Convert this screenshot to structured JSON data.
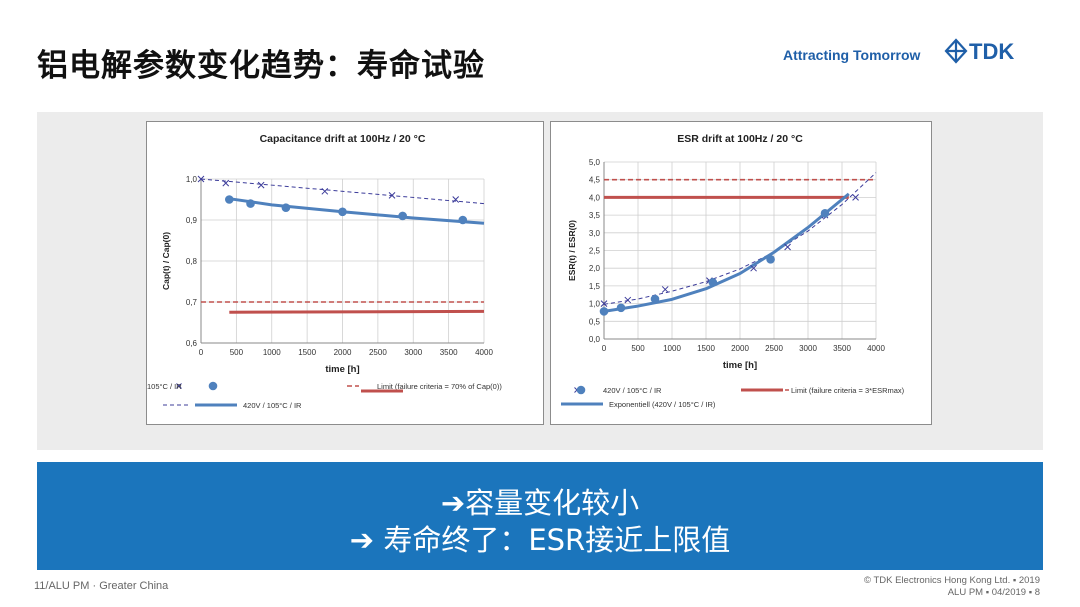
{
  "slide": {
    "title": "铝电解参数变化趋势：寿命试验",
    "tagline": "Attracting Tomorrow",
    "logo_text": "TDK",
    "banner": [
      "➔容量变化较小",
      "➔  寿命终了：ESR接近上限值"
    ],
    "footer_left": "11/ALU PM  ·  Greater China",
    "footer_right": [
      "© TDK Electronics Hong Kong Ltd.  ▪ 2019",
      "ALU PM  ▪ 04/2019 ▪ 8"
    ],
    "colors": {
      "brand_blue": "#1f5fa8",
      "band_blue": "#1b75bc",
      "series_blue": "#4f81bd",
      "limit_red": "#c0504d"
    }
  },
  "chart_data": [
    {
      "type": "scatter",
      "title": "Capacitance drift at 100Hz / 20 °C",
      "xlabel": "time [h]",
      "ylabel": "Cap(t) / Cap(0)",
      "xlim": [
        0,
        4000
      ],
      "ylim": [
        0.6,
        1.0
      ],
      "x_ticks": [
        "0",
        "500",
        "1000",
        "1500",
        "2000",
        "2500",
        "3000",
        "3500",
        "4000"
      ],
      "y_ticks": [
        "0,6",
        "0,7",
        "0,8",
        "0,9",
        "1,0"
      ],
      "grid": true,
      "legend_position": "bottom",
      "series": [
        {
          "name": "105°C / IR",
          "kind": "x-marker",
          "x": [
            0,
            350,
            850,
            1750,
            2700,
            3600
          ],
          "y": [
            1.0,
            0.99,
            0.985,
            0.97,
            0.96,
            0.95
          ]
        },
        {
          "name": "",
          "kind": "dashed-trend",
          "x": [
            0,
            4000
          ],
          "y": [
            1.0,
            0.94
          ]
        },
        {
          "name": "",
          "kind": "circle-marker",
          "x": [
            400,
            700,
            1200,
            2000,
            2850,
            3700
          ],
          "y": [
            0.95,
            0.94,
            0.93,
            0.92,
            0.91,
            0.9
          ]
        },
        {
          "name": "420V / 105°C / IR",
          "kind": "solid-trend",
          "x": [
            400,
            1000,
            2000,
            3000,
            4000
          ],
          "y": [
            0.952,
            0.937,
            0.92,
            0.905,
            0.892
          ]
        },
        {
          "name": "Limit (failure criteria = 70% of Cap(0))",
          "kind": "dashed-limit",
          "x": [
            0,
            4000
          ],
          "y": [
            0.7,
            0.7
          ]
        },
        {
          "name": "",
          "kind": "solid-limit",
          "x": [
            400,
            4000
          ],
          "y": [
            0.675,
            0.677
          ]
        }
      ]
    },
    {
      "type": "scatter",
      "title": "ESR drift at 100Hz / 20 °C",
      "xlabel": "time [h]",
      "ylabel": "ESR(t) / ESR(0)",
      "xlim": [
        0,
        4000
      ],
      "ylim": [
        0.0,
        5.0
      ],
      "x_ticks": [
        "0",
        "500",
        "1000",
        "1500",
        "2000",
        "2500",
        "3000",
        "3500",
        "4000"
      ],
      "y_ticks": [
        "0,0",
        "0,5",
        "1,0",
        "1,5",
        "2,0",
        "2,5",
        "3,0",
        "3,5",
        "4,0",
        "4,5",
        "5,0"
      ],
      "grid": true,
      "legend_position": "bottom",
      "series": [
        {
          "name": "",
          "kind": "x-marker",
          "x": [
            0,
            350,
            900,
            1550,
            2200,
            2700,
            3250,
            3700
          ],
          "y": [
            1.0,
            1.1,
            1.4,
            1.65,
            2.0,
            2.6,
            3.5,
            4.0
          ]
        },
        {
          "name": "",
          "kind": "dashed-trend",
          "x": [
            0,
            500,
            1000,
            1500,
            2000,
            2500,
            3000,
            3500,
            4000
          ],
          "y": [
            0.98,
            1.13,
            1.35,
            1.62,
            1.98,
            2.45,
            3.05,
            3.8,
            4.7
          ]
        },
        {
          "name": "420V / 105°C / IR",
          "kind": "circle-marker",
          "x": [
            0,
            250,
            750,
            1600,
            2450,
            3250
          ],
          "y": [
            0.78,
            0.88,
            1.13,
            1.6,
            2.25,
            3.55
          ]
        },
        {
          "name": "Exponentiell (420V / 105°C / IR)",
          "kind": "solid-trend",
          "x": [
            0,
            500,
            1000,
            1500,
            2000,
            2500,
            3000,
            3600
          ],
          "y": [
            0.78,
            0.93,
            1.12,
            1.42,
            1.85,
            2.45,
            3.15,
            4.1
          ]
        },
        {
          "name": "",
          "kind": "dashed-limit",
          "x": [
            0,
            4000
          ],
          "y": [
            4.5,
            4.5
          ]
        },
        {
          "name": "Limit (failure criteria = 3*ESRmax)",
          "kind": "solid-limit",
          "x": [
            0,
            3600
          ],
          "y": [
            4.0,
            4.0
          ]
        }
      ]
    }
  ]
}
